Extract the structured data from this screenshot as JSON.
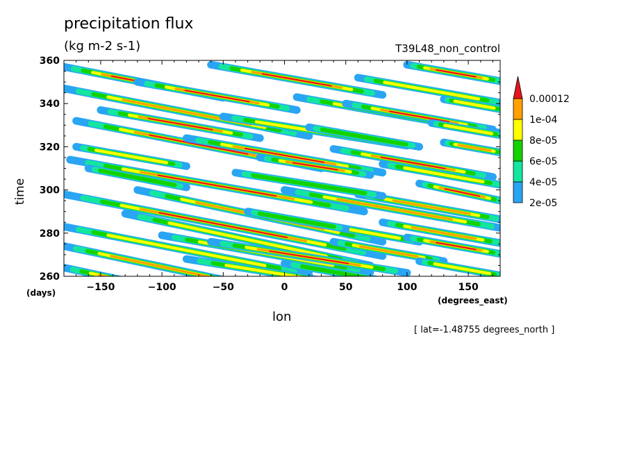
{
  "figure": {
    "title": "precipitation flux",
    "units": "(kg m-2 s-1)",
    "run_label": "T39L48_non_control",
    "note": "[ lat=-1.48755 degrees_north ]"
  },
  "chart_data": {
    "type": "heatmap",
    "title": "precipitation flux",
    "subtitle": "(kg m-2 s-1)",
    "xlabel": "lon",
    "xunit": "(degrees_east)",
    "ylabel": "time",
    "yunit": "(days)",
    "xlim": [
      -180,
      176
    ],
    "ylim": [
      260,
      360
    ],
    "xticks": [
      -150,
      -100,
      -50,
      0,
      50,
      100,
      150
    ],
    "yticks": [
      260,
      280,
      300,
      320,
      340,
      360
    ],
    "xtick_labels": [
      "−150",
      "−100",
      "−50",
      "0",
      "50",
      "100",
      "150"
    ],
    "ytick_labels": [
      "260",
      "280",
      "300",
      "320",
      "340",
      "360"
    ],
    "contour_levels": [
      "2e-05",
      "4e-05",
      "6e-05",
      "8e-05",
      "1e-04",
      "0.00012"
    ],
    "contour_colors": [
      "#2aa5f3",
      "#14e6a0",
      "#14d200",
      "#ffff00",
      "#ffa000",
      "#e6141e"
    ],
    "colorbar_extend": "max",
    "bands": [
      {
        "lon0": -180,
        "t0": 264,
        "slope": -0.12,
        "len": 120,
        "peak": 1
      },
      {
        "lon0": -180,
        "t0": 274,
        "slope": -0.12,
        "len": 160,
        "peak": 0.9
      },
      {
        "lon0": -180,
        "t0": 283,
        "slope": -0.11,
        "len": 200,
        "peak": 0.7
      },
      {
        "lon0": -180,
        "t0": 298,
        "slope": -0.11,
        "len": 260,
        "peak": 1
      },
      {
        "lon0": -175,
        "t0": 314,
        "slope": -0.1,
        "len": 240,
        "peak": 1
      },
      {
        "lon0": -170,
        "t0": 332,
        "slope": -0.11,
        "len": 200,
        "peak": 1
      },
      {
        "lon0": -180,
        "t0": 347,
        "slope": -0.11,
        "len": 200,
        "peak": 0.9
      },
      {
        "lon0": -180,
        "t0": 357,
        "slope": -0.11,
        "len": 130,
        "peak": 1
      },
      {
        "lon0": -150,
        "t0": 337,
        "slope": -0.1,
        "len": 130,
        "peak": 1
      },
      {
        "lon0": -120,
        "t0": 350,
        "slope": -0.1,
        "len": 130,
        "peak": 1
      },
      {
        "lon0": -60,
        "t0": 358,
        "slope": -0.1,
        "len": 140,
        "peak": 0.95
      },
      {
        "lon0": -120,
        "t0": 300,
        "slope": -0.12,
        "len": 200,
        "peak": 0.9
      },
      {
        "lon0": -130,
        "t0": 289,
        "slope": -0.12,
        "len": 200,
        "peak": 0.7
      },
      {
        "lon0": -80,
        "t0": 324,
        "slope": -0.1,
        "len": 160,
        "peak": 0.95
      },
      {
        "lon0": -50,
        "t0": 334,
        "slope": -0.09,
        "len": 150,
        "peak": 0.6
      },
      {
        "lon0": -20,
        "t0": 315,
        "slope": -0.09,
        "len": 90,
        "peak": 1
      },
      {
        "lon0": -100,
        "t0": 279,
        "slope": -0.1,
        "len": 170,
        "peak": 0.6
      },
      {
        "lon0": -60,
        "t0": 276,
        "slope": -0.09,
        "len": 160,
        "peak": 1
      },
      {
        "lon0": -80,
        "t0": 268,
        "slope": -0.09,
        "len": 180,
        "peak": 0.7
      },
      {
        "lon0": 0,
        "t0": 300,
        "slope": -0.1,
        "len": 180,
        "peak": 0.9
      },
      {
        "lon0": 40,
        "t0": 319,
        "slope": -0.1,
        "len": 130,
        "peak": 1
      },
      {
        "lon0": 10,
        "t0": 343,
        "slope": -0.1,
        "len": 170,
        "peak": 0.8
      },
      {
        "lon0": 50,
        "t0": 340,
        "slope": -0.1,
        "len": 120,
        "peak": 1
      },
      {
        "lon0": 60,
        "t0": 352,
        "slope": -0.1,
        "len": 120,
        "peak": 0.7
      },
      {
        "lon0": 100,
        "t0": 358,
        "slope": -0.1,
        "len": 80,
        "peak": 1
      },
      {
        "lon0": 80,
        "t0": 312,
        "slope": -0.1,
        "len": 100,
        "peak": 0.7
      },
      {
        "lon0": 60,
        "t0": 298,
        "slope": -0.1,
        "len": 120,
        "peak": 0.9
      },
      {
        "lon0": 110,
        "t0": 303,
        "slope": -0.12,
        "len": 70,
        "peak": 1
      },
      {
        "lon0": 80,
        "t0": 285,
        "slope": -0.1,
        "len": 100,
        "peak": 0.9
      },
      {
        "lon0": 20,
        "t0": 285,
        "slope": -0.1,
        "len": 90,
        "peak": 0.6
      },
      {
        "lon0": 40,
        "t0": 276,
        "slope": -0.1,
        "len": 90,
        "peak": 0.8
      },
      {
        "lon0": 100,
        "t0": 278,
        "slope": -0.1,
        "len": 80,
        "peak": 1
      },
      {
        "lon0": 110,
        "t0": 267,
        "slope": -0.1,
        "len": 70,
        "peak": 0.7
      },
      {
        "lon0": 130,
        "t0": 322,
        "slope": -0.1,
        "len": 50,
        "peak": 0.9
      },
      {
        "lon0": 120,
        "t0": 331,
        "slope": -0.1,
        "len": 60,
        "peak": 0.6
      },
      {
        "lon0": 130,
        "t0": 342,
        "slope": -0.1,
        "len": 50,
        "peak": 0.7
      },
      {
        "lon0": -170,
        "t0": 320,
        "slope": -0.1,
        "len": 90,
        "peak": 0.6
      },
      {
        "lon0": -40,
        "t0": 308,
        "slope": -0.09,
        "len": 120,
        "peak": 0.55
      },
      {
        "lon0": 0,
        "t0": 266,
        "slope": -0.1,
        "len": 120,
        "peak": 0.55
      },
      {
        "lon0": -160,
        "t0": 310,
        "slope": -0.11,
        "len": 80,
        "peak": 0.5
      },
      {
        "lon0": -30,
        "t0": 290,
        "slope": -0.1,
        "len": 80,
        "peak": 0.5
      },
      {
        "lon0": 20,
        "t0": 329,
        "slope": -0.1,
        "len": 90,
        "peak": 0.5
      }
    ]
  }
}
